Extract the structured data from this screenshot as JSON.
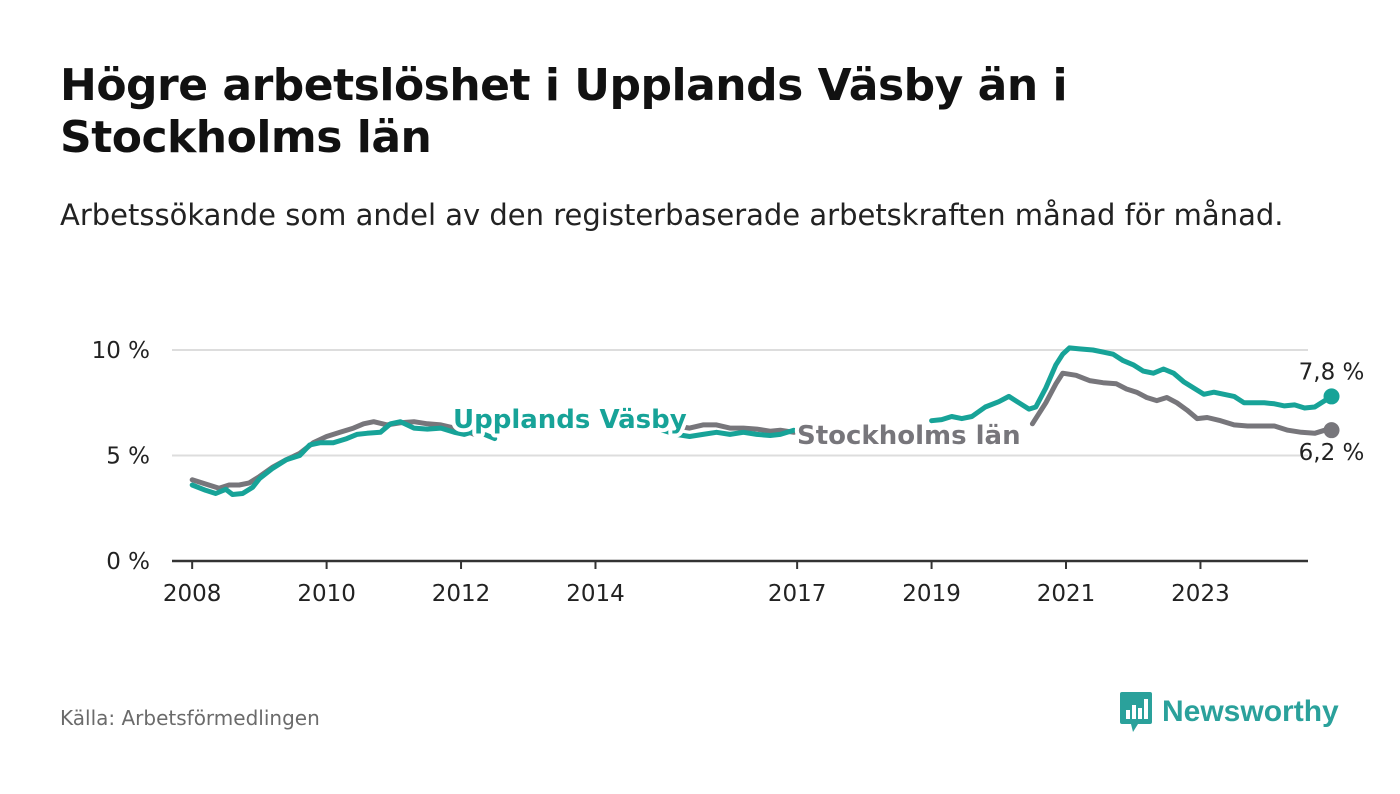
{
  "header": {
    "title": "Högre arbetslöshet i Upplands Väsby än i Stockholms län",
    "subtitle": "Arbetssökande som andel av den registerbaserade arbetskraften månad för månad."
  },
  "footer": {
    "source": "Källa: Arbetsförmedlingen",
    "brand": "Newsworthy"
  },
  "colors": {
    "upplands": "#17a398",
    "stockholm": "#77767b",
    "grid": "#dddddd",
    "axis": "#333333"
  },
  "chart_data": {
    "type": "line",
    "title": "Högre arbetslöshet i Upplands Väsby än i Stockholms län",
    "xlabel": "",
    "ylabel": "",
    "xlim": [
      2007.7,
      2024.6
    ],
    "ylim": [
      0,
      10
    ],
    "y_ticks": [
      0,
      5,
      10
    ],
    "y_tick_labels": [
      "0 %",
      "5 %",
      "10 %"
    ],
    "x_ticks": [
      2008,
      2010,
      2012,
      2014,
      2017,
      2019,
      2021,
      2023
    ],
    "x_tick_labels": [
      "2008",
      "2010",
      "2012",
      "2014",
      "2017",
      "2019",
      "2021",
      "2023"
    ],
    "series": [
      {
        "name": "Upplands Väsby",
        "color_key": "upplands",
        "end_label": "7,8 %",
        "label_position": "middle",
        "segments": [
          [
            [
              2008.0,
              3.6
            ],
            [
              2008.2,
              3.35
            ],
            [
              2008.35,
              3.2
            ],
            [
              2008.5,
              3.4
            ],
            [
              2008.6,
              3.15
            ],
            [
              2008.75,
              3.2
            ],
            [
              2008.9,
              3.5
            ],
            [
              2009.0,
              3.9
            ],
            [
              2009.2,
              4.4
            ],
            [
              2009.4,
              4.8
            ],
            [
              2009.6,
              5.0
            ],
            [
              2009.75,
              5.5
            ],
            [
              2009.9,
              5.6
            ],
            [
              2010.1,
              5.6
            ],
            [
              2010.3,
              5.8
            ],
            [
              2010.45,
              6.0
            ],
            [
              2010.6,
              6.05
            ],
            [
              2010.8,
              6.1
            ],
            [
              2010.95,
              6.5
            ],
            [
              2011.1,
              6.6
            ],
            [
              2011.3,
              6.3
            ],
            [
              2011.5,
              6.25
            ],
            [
              2011.7,
              6.3
            ],
            [
              2011.9,
              6.1
            ],
            [
              2012.05,
              6.0
            ],
            [
              2012.2,
              6.15
            ],
            [
              2012.35,
              6.0
            ],
            [
              2012.5,
              5.8
            ]
          ],
          [
            [
              2015.0,
              6.2
            ],
            [
              2015.2,
              6.0
            ],
            [
              2015.4,
              5.9
            ],
            [
              2015.6,
              6.0
            ],
            [
              2015.8,
              6.1
            ],
            [
              2016.0,
              6.0
            ],
            [
              2016.2,
              6.1
            ],
            [
              2016.4,
              6.0
            ],
            [
              2016.6,
              5.95
            ],
            [
              2016.75,
              6.0
            ],
            [
              2016.95,
              6.2
            ]
          ],
          [
            [
              2019.0,
              6.65
            ],
            [
              2019.15,
              6.7
            ],
            [
              2019.3,
              6.85
            ],
            [
              2019.45,
              6.75
            ],
            [
              2019.6,
              6.85
            ],
            [
              2019.8,
              7.3
            ],
            [
              2020.0,
              7.55
            ],
            [
              2020.15,
              7.8
            ],
            [
              2020.3,
              7.5
            ],
            [
              2020.45,
              7.2
            ],
            [
              2020.55,
              7.3
            ],
            [
              2020.7,
              8.2
            ],
            [
              2020.85,
              9.3
            ],
            [
              2020.95,
              9.8
            ],
            [
              2021.05,
              10.1
            ],
            [
              2021.2,
              10.05
            ],
            [
              2021.4,
              10.0
            ],
            [
              2021.55,
              9.9
            ],
            [
              2021.7,
              9.8
            ],
            [
              2021.85,
              9.5
            ],
            [
              2022.0,
              9.3
            ],
            [
              2022.15,
              9.0
            ],
            [
              2022.3,
              8.9
            ],
            [
              2022.45,
              9.1
            ],
            [
              2022.6,
              8.9
            ],
            [
              2022.75,
              8.5
            ],
            [
              2022.9,
              8.2
            ],
            [
              2023.05,
              7.9
            ],
            [
              2023.2,
              8.0
            ],
            [
              2023.35,
              7.9
            ],
            [
              2023.5,
              7.8
            ],
            [
              2023.65,
              7.5
            ],
            [
              2023.8,
              7.5
            ],
            [
              2023.95,
              7.5
            ],
            [
              2024.1,
              7.45
            ],
            [
              2024.25,
              7.35
            ],
            [
              2024.4,
              7.4
            ],
            [
              2024.55,
              7.25
            ],
            [
              2024.7,
              7.3
            ],
            [
              2024.85,
              7.6
            ],
            [
              2024.95,
              7.8
            ]
          ]
        ],
        "end_point": [
          2024.95,
          7.8
        ]
      },
      {
        "name": "Stockholms län",
        "color_key": "stockholm",
        "end_label": "6,2 %",
        "label_position": "middle-right",
        "segments": [
          [
            [
              2008.0,
              3.85
            ],
            [
              2008.2,
              3.65
            ],
            [
              2008.4,
              3.45
            ],
            [
              2008.55,
              3.6
            ],
            [
              2008.7,
              3.6
            ],
            [
              2008.85,
              3.7
            ],
            [
              2009.0,
              4.0
            ],
            [
              2009.2,
              4.45
            ],
            [
              2009.4,
              4.8
            ],
            [
              2009.6,
              5.1
            ],
            [
              2009.8,
              5.6
            ],
            [
              2010.0,
              5.9
            ],
            [
              2010.2,
              6.1
            ],
            [
              2010.4,
              6.3
            ],
            [
              2010.55,
              6.5
            ],
            [
              2010.7,
              6.6
            ],
            [
              2010.9,
              6.45
            ],
            [
              2011.1,
              6.55
            ],
            [
              2011.3,
              6.6
            ],
            [
              2011.5,
              6.5
            ],
            [
              2011.7,
              6.45
            ],
            [
              2011.9,
              6.3
            ],
            [
              2012.05,
              6.2
            ],
            [
              2012.2,
              6.0
            ]
          ],
          [
            [
              2015.0,
              6.5
            ],
            [
              2015.2,
              6.4
            ],
            [
              2015.4,
              6.3
            ],
            [
              2015.6,
              6.45
            ],
            [
              2015.8,
              6.45
            ],
            [
              2016.0,
              6.3
            ],
            [
              2016.2,
              6.3
            ],
            [
              2016.4,
              6.25
            ],
            [
              2016.6,
              6.15
            ],
            [
              2016.75,
              6.2
            ],
            [
              2016.95,
              6.1
            ]
          ],
          [
            [
              2020.5,
              6.5
            ],
            [
              2020.7,
              7.5
            ],
            [
              2020.85,
              8.4
            ],
            [
              2020.95,
              8.9
            ],
            [
              2021.15,
              8.8
            ],
            [
              2021.35,
              8.55
            ],
            [
              2021.55,
              8.45
            ],
            [
              2021.75,
              8.4
            ],
            [
              2021.9,
              8.15
            ],
            [
              2022.05,
              8.0
            ],
            [
              2022.2,
              7.75
            ],
            [
              2022.35,
              7.6
            ],
            [
              2022.5,
              7.75
            ],
            [
              2022.65,
              7.5
            ],
            [
              2022.8,
              7.15
            ],
            [
              2022.95,
              6.75
            ],
            [
              2023.1,
              6.8
            ],
            [
              2023.3,
              6.65
            ],
            [
              2023.5,
              6.45
            ],
            [
              2023.7,
              6.4
            ],
            [
              2023.9,
              6.4
            ],
            [
              2024.1,
              6.4
            ],
            [
              2024.3,
              6.2
            ],
            [
              2024.5,
              6.1
            ],
            [
              2024.7,
              6.05
            ],
            [
              2024.85,
              6.2
            ],
            [
              2024.95,
              6.2
            ]
          ]
        ],
        "end_point": [
          2024.95,
          6.2
        ]
      }
    ]
  }
}
